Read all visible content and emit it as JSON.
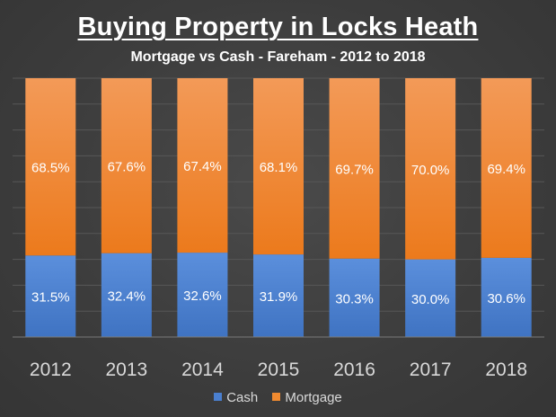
{
  "chart_data": {
    "type": "bar",
    "stacked": true,
    "title": "Buying Property in Locks Heath",
    "subtitle": "Mortgage vs Cash - Fareham - 2012 to 2018",
    "categories": [
      "2012",
      "2013",
      "2014",
      "2015",
      "2016",
      "2017",
      "2018"
    ],
    "series": [
      {
        "name": "Cash",
        "color": "#4a7fcf",
        "values": [
          31.5,
          32.4,
          32.6,
          31.9,
          30.3,
          30.0,
          30.6
        ],
        "labels": [
          "31.5%",
          "32.4%",
          "32.6%",
          "31.9%",
          "30.3%",
          "30.0%",
          "30.6%"
        ]
      },
      {
        "name": "Mortgage",
        "color": "#f08a30",
        "values": [
          68.5,
          67.6,
          67.4,
          68.1,
          69.7,
          70.0,
          69.4
        ],
        "labels": [
          "68.5%",
          "67.6%",
          "67.4%",
          "68.1%",
          "69.7%",
          "70.0%",
          "69.4%"
        ]
      }
    ],
    "ylim": [
      0,
      100
    ],
    "xlabel": "",
    "ylabel": "",
    "grid": true,
    "legend_position": "bottom"
  }
}
